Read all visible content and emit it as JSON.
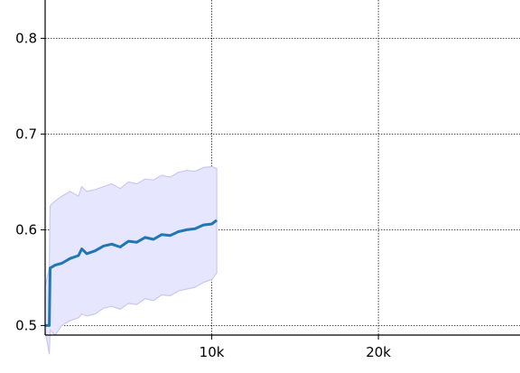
{
  "chart_data": {
    "type": "line",
    "title": "",
    "xlabel": "",
    "ylabel": "",
    "xlim": [
      0,
      28500
    ],
    "ylim": [
      0.49,
      0.84
    ],
    "x_ticks": [
      10000,
      20000
    ],
    "x_tick_labels": [
      "10k",
      "20k"
    ],
    "y_ticks": [
      0.5,
      0.6,
      0.7,
      0.8
    ],
    "y_tick_labels": [
      "0.5",
      "0.6",
      "0.7",
      "0.8"
    ],
    "grid": true,
    "grid_style": "dotted",
    "colors": {
      "line": "#1f77b4",
      "band_fill": "#e6e6ff",
      "band_edge": "#c8c8f5"
    },
    "series": [
      {
        "x": [
          0,
          250,
          300,
          600,
          1000,
          1500,
          2000,
          2200,
          2500,
          3000,
          3500,
          4000,
          4500,
          5000,
          5500,
          6000,
          6500,
          7000,
          7500,
          8000,
          8500,
          9000,
          9500,
          10000,
          10300
        ],
        "y": [
          0.5,
          0.5,
          0.56,
          0.563,
          0.565,
          0.57,
          0.573,
          0.58,
          0.575,
          0.578,
          0.583,
          0.585,
          0.582,
          0.588,
          0.587,
          0.592,
          0.59,
          0.595,
          0.594,
          0.598,
          0.6,
          0.601,
          0.605,
          0.606,
          0.61
        ],
        "upper": [
          0.54,
          0.56,
          0.625,
          0.63,
          0.635,
          0.64,
          0.635,
          0.645,
          0.64,
          0.642,
          0.645,
          0.648,
          0.643,
          0.65,
          0.648,
          0.653,
          0.652,
          0.657,
          0.655,
          0.66,
          0.662,
          0.661,
          0.665,
          0.666,
          0.664
        ],
        "lower": [
          0.495,
          0.47,
          0.495,
          0.49,
          0.5,
          0.505,
          0.508,
          0.512,
          0.51,
          0.512,
          0.518,
          0.52,
          0.517,
          0.523,
          0.522,
          0.528,
          0.526,
          0.532,
          0.531,
          0.536,
          0.538,
          0.54,
          0.545,
          0.548,
          0.555
        ]
      }
    ]
  }
}
